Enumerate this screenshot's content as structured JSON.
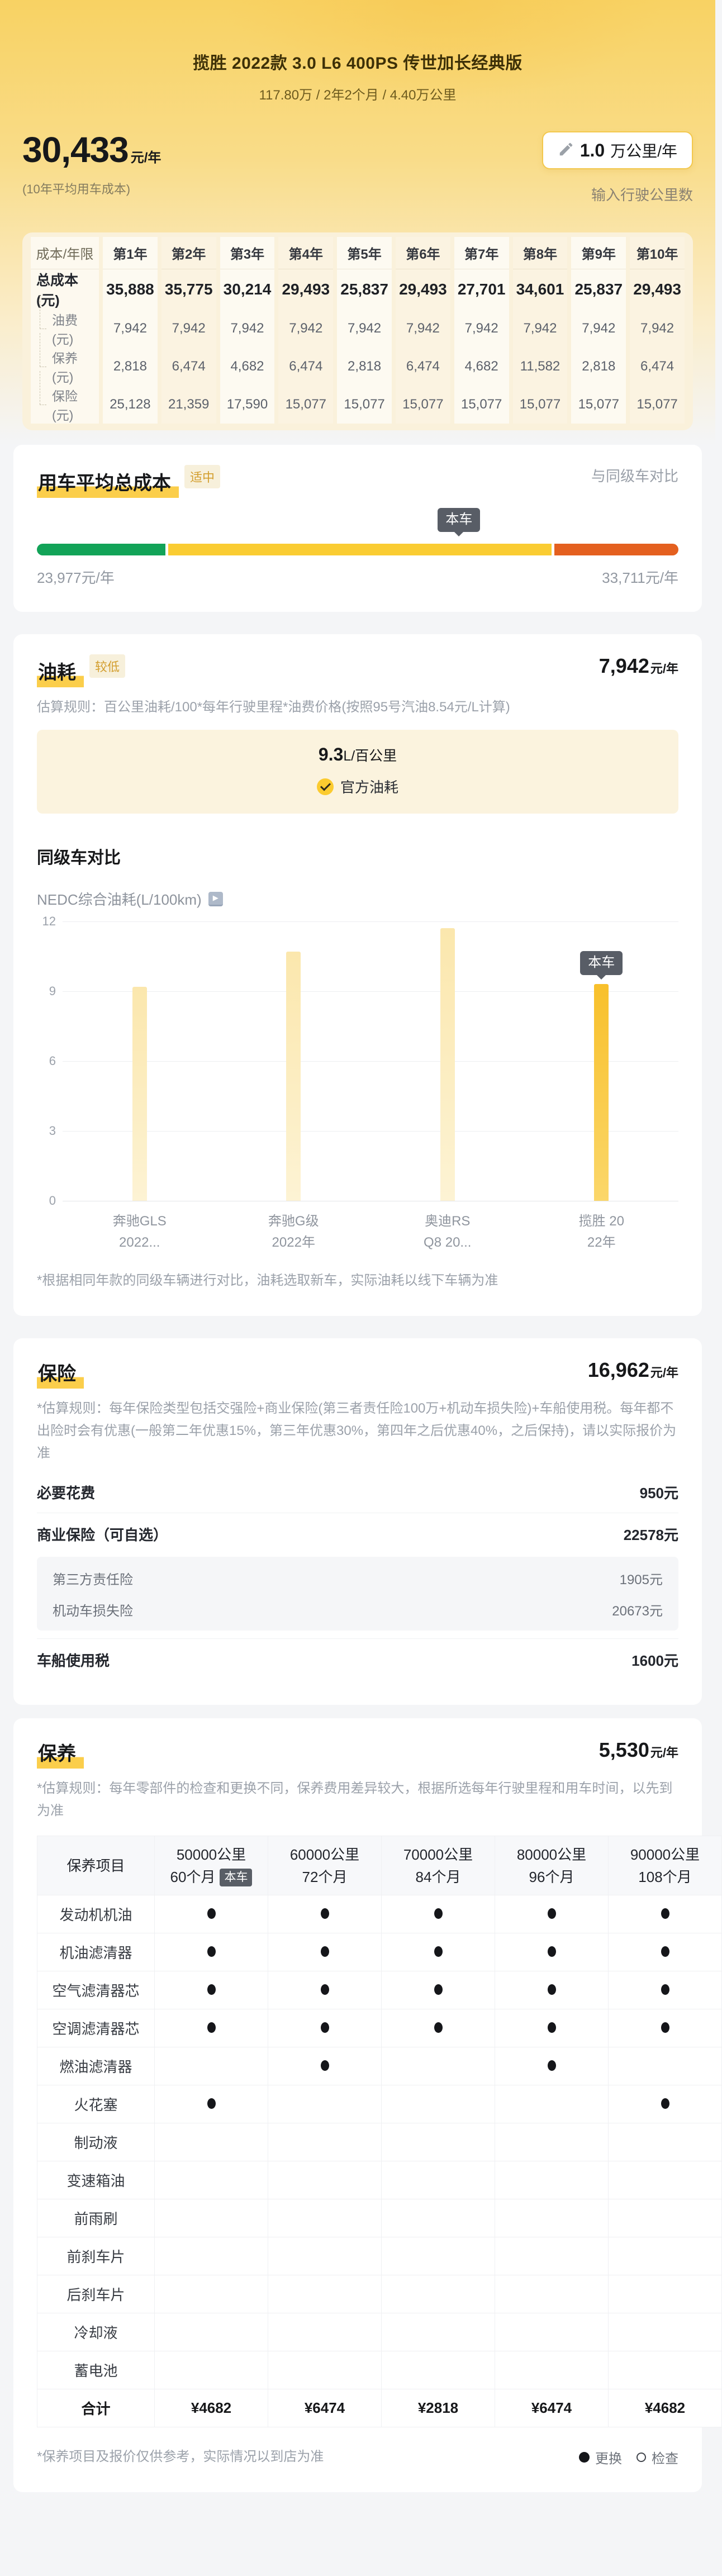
{
  "header": {
    "title": "揽胜 2022款 3.0 L6 400PS 传世加长经典版",
    "subtitle": "117.80万 / 2年2个月 / 4.40万公里",
    "cost_value": "30,433",
    "cost_unit": "元/年",
    "cost_caption": "(10年平均用车成本)",
    "mileage_input": {
      "value": "1.0",
      "unit": "万公里/年",
      "hint": "输入行驶公里数"
    }
  },
  "cost_table": {
    "corner": "成本/年限",
    "years": [
      "第1年",
      "第2年",
      "第3年",
      "第4年",
      "第5年",
      "第6年",
      "第7年",
      "第8年",
      "第9年",
      "第10年"
    ],
    "rows": [
      {
        "label": "总成本(元)",
        "type": "total",
        "values": [
          "35,888",
          "35,775",
          "30,214",
          "29,493",
          "25,837",
          "29,493",
          "27,701",
          "34,601",
          "25,837",
          "29,493"
        ]
      },
      {
        "label": "油费(元)",
        "type": "sub",
        "values": [
          "7,942",
          "7,942",
          "7,942",
          "7,942",
          "7,942",
          "7,942",
          "7,942",
          "7,942",
          "7,942",
          "7,942"
        ]
      },
      {
        "label": "保养(元)",
        "type": "sub",
        "values": [
          "2,818",
          "6,474",
          "4,682",
          "6,474",
          "2,818",
          "6,474",
          "4,682",
          "11,582",
          "2,818",
          "6,474"
        ]
      },
      {
        "label": "保险(元)",
        "type": "sub",
        "values": [
          "25,128",
          "21,359",
          "17,590",
          "15,077",
          "15,077",
          "15,077",
          "15,077",
          "15,077",
          "15,077",
          "15,077"
        ]
      }
    ]
  },
  "avg_cost": {
    "title": "用车平均总成本",
    "badge": "适中",
    "compare_hint": "与同级车对比",
    "marker": "本车",
    "marker_pos_pct": 65.8,
    "min": "23,977元/年",
    "max": "33,711元/年",
    "segment_colors": {
      "low": "#12A358",
      "mid": "#FACC32",
      "high": "#E4601F"
    }
  },
  "fuel": {
    "title": "油耗",
    "badge": "较低",
    "value": "7,942",
    "unit": "元/年",
    "rule": "估算规则：百公里油耗/100*每年行驶里程*油费价格(按照95号汽油8.54元/L计算)",
    "consumption": "9.3",
    "consumption_unit": "L/百公里",
    "official_label": "官方油耗"
  },
  "peer_chart": {
    "heading": "同级车对比",
    "axis_title": "NEDC综合油耗(L/100km)",
    "marker": "本车",
    "footnote": "*根据相同年款的同级车辆进行对比，油耗选取新车，实际油耗以线下车辆为准",
    "chart_data": {
      "type": "bar",
      "title": "NEDC综合油耗(L/100km)",
      "categories": [
        [
          "奔驰GLS",
          "2022..."
        ],
        [
          "奔驰G级",
          "2022年"
        ],
        [
          "奥迪RS",
          "Q8 20..."
        ],
        [
          "揽胜 20",
          "22年"
        ]
      ],
      "values": [
        9.2,
        10.7,
        11.7,
        9.3
      ],
      "highlight_index": 3,
      "highlight_label": "本车",
      "yticks": [
        0,
        3,
        6,
        9,
        12
      ],
      "ylim": [
        0,
        12
      ],
      "grid": true,
      "bar_color": "#FBE7AD",
      "highlight_color": "#F8C02B"
    }
  },
  "insurance": {
    "title": "保险",
    "value": "16,962",
    "unit": "元/年",
    "rule": "*估算规则：每年保险类型包括交强险+商业保险(第三者责任险100万+机动车损失险)+车船使用税。每年都不出险时会有优惠(一般第二年优惠15%，第三年优惠30%，第四年之后优惠40%，之后保持)，请以实际报价为准",
    "required_label": "必要花费",
    "required_value": "950元",
    "commercial_label": "商业保险（可自选）",
    "commercial_value": "22578元",
    "sub_rows": [
      {
        "label": "第三方责任险",
        "value": "1905元"
      },
      {
        "label": "机动车损失险",
        "value": "20673元"
      }
    ],
    "tax_label": "车船使用税",
    "tax_value": "1600元"
  },
  "maintenance": {
    "title": "保养",
    "value": "5,530",
    "unit": "元/年",
    "rule": "*估算规则：每年零部件的检查和更换不同，保养费用差异较大，根据所选每年行驶里程和用车时间，以先到为准",
    "table": {
      "corner": "保养项目",
      "columns": [
        {
          "line1": "50000公里",
          "line2": "60个月",
          "badge": "本车"
        },
        {
          "line1": "60000公里",
          "line2": "72个月"
        },
        {
          "line1": "70000公里",
          "line2": "84个月"
        },
        {
          "line1": "80000公里",
          "line2": "96个月"
        },
        {
          "line1": "90000公里",
          "line2": "108个月"
        }
      ],
      "items": [
        {
          "label": "发动机机油",
          "marks": [
            1,
            1,
            1,
            1,
            1
          ]
        },
        {
          "label": "机油滤清器",
          "marks": [
            1,
            1,
            1,
            1,
            1
          ]
        },
        {
          "label": "空气滤清器芯",
          "marks": [
            1,
            1,
            1,
            1,
            1
          ]
        },
        {
          "label": "空调滤清器芯",
          "marks": [
            1,
            1,
            1,
            1,
            1
          ]
        },
        {
          "label": "燃油滤清器",
          "marks": [
            0,
            1,
            0,
            1,
            0
          ]
        },
        {
          "label": "火花塞",
          "marks": [
            1,
            0,
            0,
            0,
            1
          ]
        },
        {
          "label": "制动液",
          "marks": [
            0,
            0,
            0,
            0,
            0
          ]
        },
        {
          "label": "变速箱油",
          "marks": [
            0,
            0,
            0,
            0,
            0
          ]
        },
        {
          "label": "前雨刷",
          "marks": [
            0,
            0,
            0,
            0,
            0
          ]
        },
        {
          "label": "前刹车片",
          "marks": [
            0,
            0,
            0,
            0,
            0
          ]
        },
        {
          "label": "后刹车片",
          "marks": [
            0,
            0,
            0,
            0,
            0
          ]
        },
        {
          "label": "冷却液",
          "marks": [
            0,
            0,
            0,
            0,
            0
          ]
        },
        {
          "label": "蓄电池",
          "marks": [
            0,
            0,
            0,
            0,
            0
          ]
        }
      ],
      "total_label": "合计",
      "totals": [
        "¥4682",
        "¥6474",
        "¥2818",
        "¥6474",
        "¥4682"
      ]
    },
    "footnote": "*保养项目及报价仅供参考，实际情况以到店为准",
    "legend": {
      "replace": "更换",
      "inspect": "检查"
    }
  },
  "colors": {
    "accent_highlight": "#FBCE4B",
    "badge_text": "#D39E2E",
    "tooltip_bg": "#585D66",
    "bar_green": "#12A358",
    "bar_yellow": "#FACC32",
    "bar_orange": "#E4601F",
    "chart_pale_bar": "#FBE7AD",
    "chart_active_bar": "#F8C02B"
  }
}
